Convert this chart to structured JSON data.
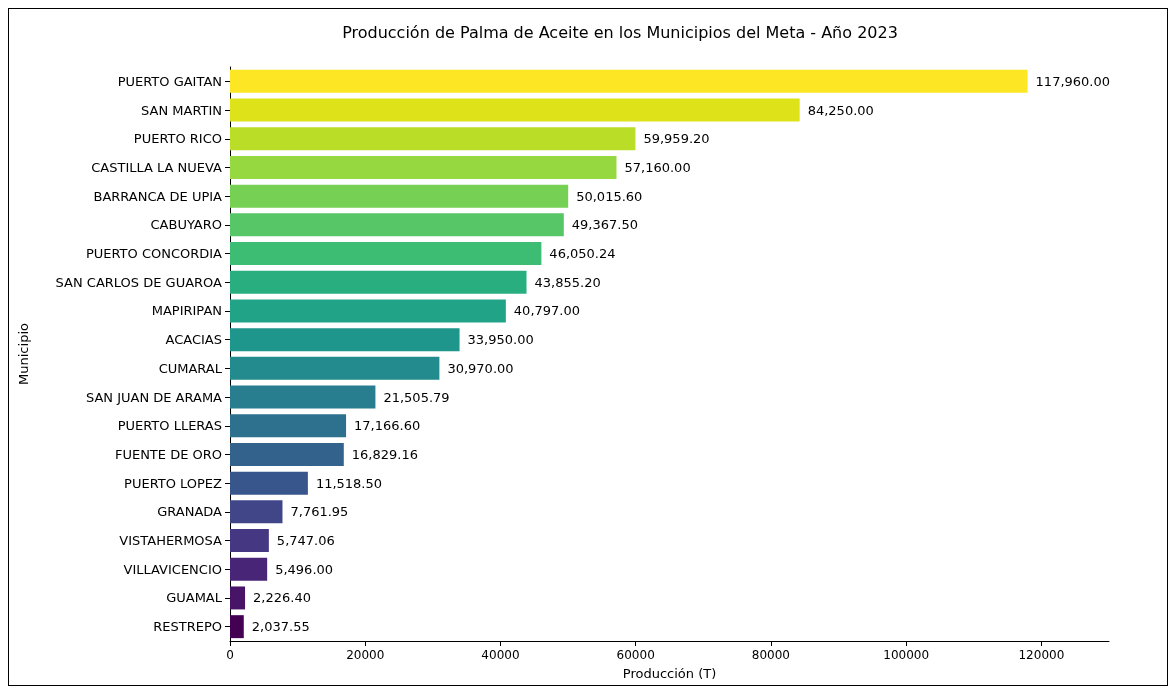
{
  "chart_data": {
    "type": "bar",
    "orientation": "horizontal",
    "title": "Producción de Palma de Aceite en los Municipios del Meta - Año 2023",
    "xlabel": "Producción (T)",
    "ylabel": "Municipio",
    "categories": [
      "PUERTO GAITAN",
      "SAN MARTIN",
      "PUERTO RICO",
      "CASTILLA LA NUEVA",
      "BARRANCA DE UPIA",
      "CABUYARO",
      "PUERTO CONCORDIA",
      "SAN CARLOS DE GUAROA",
      "MAPIRIPAN",
      "ACACIAS",
      "CUMARAL",
      "SAN JUAN DE ARAMA",
      "PUERTO LLERAS",
      "FUENTE DE ORO",
      "PUERTO LOPEZ",
      "GRANADA",
      "VISTAHERMOSA",
      "VILLAVICENCIO",
      "GUAMAL",
      "RESTREPO"
    ],
    "values": [
      117960,
      84250,
      59959.2,
      57160,
      50015.6,
      49367.5,
      46050.24,
      43855.2,
      40797,
      33950,
      30970,
      21505.79,
      17166.6,
      16829.16,
      11518.5,
      7761.95,
      5747.06,
      5496,
      2226.4,
      2037.55
    ],
    "value_labels": [
      "117,960.00",
      "84,250.00",
      "59,959.20",
      "57,160.00",
      "50,015.60",
      "49,367.50",
      "46,050.24",
      "43,855.20",
      "40,797.00",
      "33,950.00",
      "30,970.00",
      "21,505.79",
      "17,166.60",
      "16,829.16",
      "11,518.50",
      "7,761.95",
      "5,747.06",
      "5,496.00",
      "2,226.40",
      "2,037.55"
    ],
    "colors": [
      "#fde725",
      "#dde318",
      "#bade28",
      "#95d840",
      "#75d054",
      "#56c667",
      "#3dbc74",
      "#29af7f",
      "#20a386",
      "#1f968b",
      "#238a8d",
      "#287d8e",
      "#2d718e",
      "#33638d",
      "#39568c",
      "#404688",
      "#453781",
      "#482576",
      "#481467",
      "#440154"
    ],
    "xlim": [
      0,
      130000
    ],
    "xticks": [
      0,
      20000,
      40000,
      60000,
      80000,
      100000,
      120000
    ],
    "grid": false
  }
}
